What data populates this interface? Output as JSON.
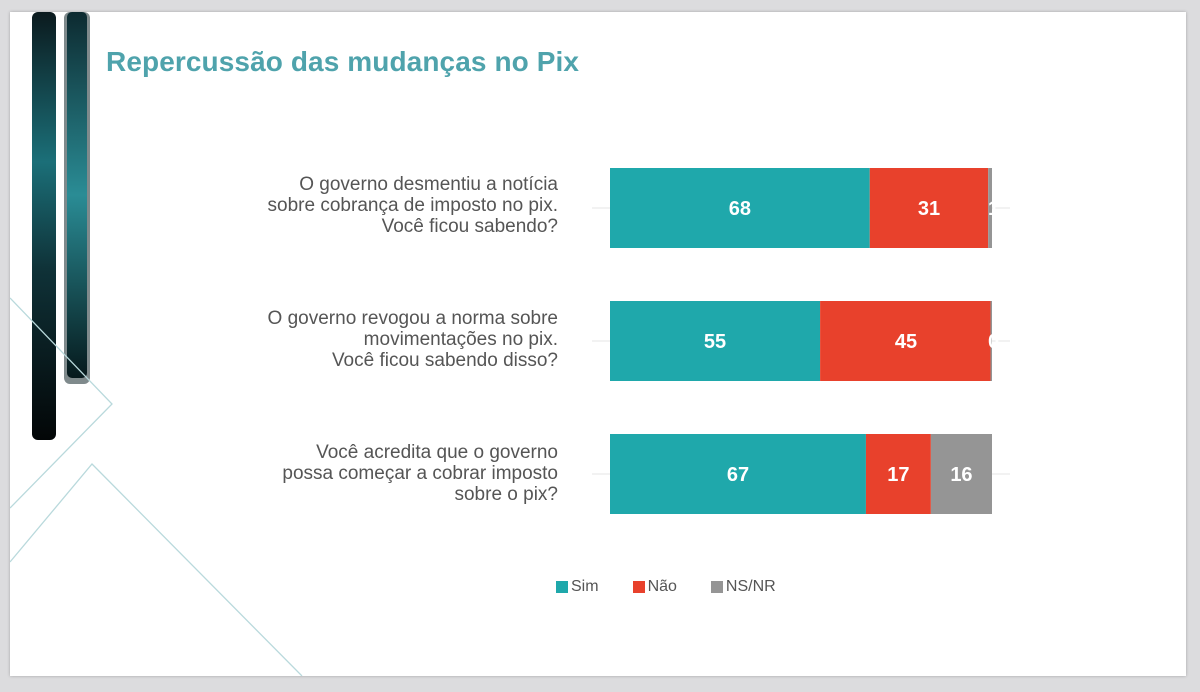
{
  "chart_data": {
    "type": "bar",
    "orientation": "horizontal",
    "stacked": true,
    "title": "Repercussão das mudanças no Pix",
    "xlim": [
      0,
      100
    ],
    "categories": [
      [
        "O governo desmentiu a notícia",
        "sobre cobrança de imposto no pix.",
        "Você ficou sabendo?"
      ],
      [
        "O governo revogou a norma sobre",
        "movimentações no pix.",
        "Você ficou sabendo disso?"
      ],
      [
        "Você acredita que o governo",
        "possa começar a cobrar imposto",
        "sobre o pix?"
      ]
    ],
    "series": [
      {
        "name": "Sim",
        "color": "#1fa8ab",
        "values": [
          68,
          55,
          67
        ],
        "labels": [
          "68",
          "55",
          "67"
        ]
      },
      {
        "name": "Não",
        "color": "#e8412c",
        "values": [
          31,
          45,
          17
        ],
        "labels": [
          "31",
          "45",
          "17"
        ]
      },
      {
        "name": "NS/NR",
        "color": "#959595",
        "values": [
          1,
          0,
          16
        ],
        "labels": [
          "1",
          "0",
          "16"
        ]
      }
    ],
    "legend_position": "bottom-center"
  }
}
